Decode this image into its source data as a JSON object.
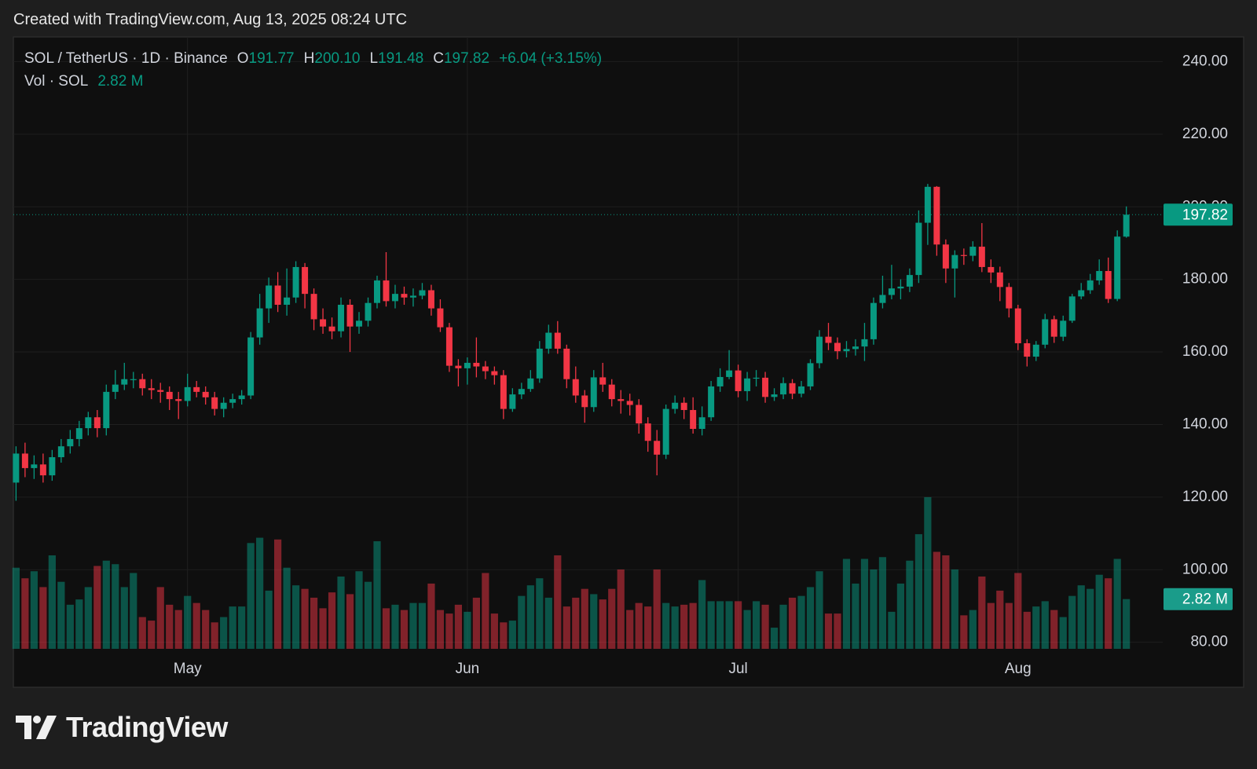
{
  "header": {
    "created": "Created with TradingView.com, Aug 13, 2025 08:24 UTC"
  },
  "chart_data": {
    "type": "candlestick",
    "symbol": "SOL / TetherUS · 1D · Binance",
    "categories": [
      null,
      null,
      null,
      null,
      null,
      null,
      null,
      null,
      null,
      null,
      null,
      null,
      null,
      null,
      null,
      null,
      null,
      null,
      null,
      "May",
      null,
      null,
      null,
      null,
      null,
      null,
      null,
      null,
      null,
      null,
      null,
      null,
      null,
      null,
      null,
      null,
      null,
      null,
      null,
      null,
      null,
      null,
      null,
      null,
      null,
      null,
      null,
      null,
      null,
      null,
      "Jun",
      null,
      null,
      null,
      null,
      null,
      null,
      null,
      null,
      null,
      null,
      null,
      null,
      null,
      null,
      null,
      null,
      null,
      null,
      null,
      null,
      null,
      null,
      null,
      null,
      null,
      null,
      null,
      null,
      null,
      "Jul",
      null,
      null,
      null,
      null,
      null,
      null,
      null,
      null,
      null,
      null,
      null,
      null,
      null,
      null,
      null,
      null,
      null,
      null,
      null,
      null,
      null,
      null,
      null,
      null,
      null,
      null,
      null,
      null,
      null,
      null,
      "Aug",
      null,
      null,
      null,
      null,
      null,
      null,
      null,
      null,
      null,
      null,
      null,
      null
    ],
    "open": [
      124,
      132,
      128,
      129,
      126,
      131,
      134,
      136,
      139,
      142,
      139,
      149,
      151,
      152.5,
      152.5,
      150,
      149.5,
      149,
      147,
      146.5,
      150.3,
      149,
      147.5,
      144.3,
      146,
      147,
      148,
      164,
      172,
      178.3,
      173,
      175,
      183.4,
      176,
      169,
      167,
      165.7,
      173,
      167,
      168.6,
      173.5,
      179.7,
      174,
      176,
      175,
      175.5,
      177,
      172,
      166.8,
      156.2,
      155.5,
      157,
      156,
      154.7,
      153.6,
      144.3,
      148.3,
      149.8,
      152.7,
      160.9,
      165.3,
      160.9,
      152.5,
      148,
      144.8,
      153,
      151,
      147,
      146.5,
      145.4,
      140.3,
      135.5,
      131.7,
      144.3,
      146,
      144,
      138.8,
      142,
      150.5,
      153.1,
      154.9,
      149.2,
      152.7,
      152.9,
      147.6,
      148.3,
      151.4,
      148.5,
      150.5,
      156.9,
      164.2,
      162.5,
      160.2,
      160.8,
      161.5,
      163.5,
      173.5,
      175.7,
      177.5,
      178,
      181.2,
      195.6,
      205.5,
      189.6,
      183,
      186.7,
      186.5,
      189,
      183.4,
      181.9,
      177.9,
      172,
      162.4,
      158.7,
      162,
      169,
      164.2,
      168.6,
      175.3,
      177,
      179.7,
      182.3,
      174.6,
      191.77
    ],
    "high": [
      134,
      135,
      131.5,
      132,
      133,
      136,
      138.5,
      141,
      143.5,
      144,
      151,
      155,
      157,
      154.5,
      154,
      152.5,
      151.5,
      150.5,
      149,
      154,
      152,
      150.5,
      149,
      147.5,
      148.5,
      149.5,
      165.5,
      176,
      180.5,
      182,
      183,
      185,
      184.5,
      177.5,
      172,
      169.5,
      175,
      174.5,
      171,
      175,
      181,
      187.5,
      178.5,
      178,
      177.5,
      179,
      178.5,
      174.5,
      168,
      158,
      158.5,
      164,
      157.5,
      156,
      155,
      150,
      151.5,
      155,
      163,
      167.5,
      168.5,
      162,
      156,
      149.5,
      155,
      157,
      152.5,
      149.5,
      148.5,
      147,
      142,
      138.5,
      145.5,
      148,
      147.5,
      147.5,
      145,
      152,
      155.5,
      160.5,
      156.5,
      154.5,
      155,
      154.5,
      150,
      153,
      152.5,
      152,
      158,
      166,
      168,
      164,
      163,
      163.5,
      168,
      175,
      181,
      184,
      180,
      183,
      199,
      206.3,
      205.7,
      191,
      188,
      188.5,
      190.5,
      195.5,
      185.5,
      183.5,
      179,
      173,
      163.5,
      163,
      170.5,
      170,
      170,
      176,
      179,
      181.5,
      185.5,
      186,
      193.5,
      200.1
    ],
    "low": [
      119,
      125.5,
      125,
      124,
      124.5,
      129.5,
      132,
      134,
      137,
      136.5,
      137,
      147,
      149.5,
      150,
      148,
      147,
      146,
      144,
      141.5,
      145,
      147.5,
      145.5,
      142.5,
      142,
      144.5,
      145.5,
      147,
      162,
      168,
      171,
      170,
      173.5,
      172,
      166,
      165,
      163.5,
      164,
      160,
      165,
      167,
      172,
      172.5,
      172,
      173,
      172.5,
      174.5,
      170,
      165.5,
      154.5,
      150.5,
      151,
      153,
      152.5,
      151,
      141.5,
      143.5,
      147,
      149,
      151.5,
      159.5,
      159.5,
      150,
      146,
      140.5,
      143.5,
      149,
      145,
      143,
      142.5,
      137.5,
      132.5,
      126,
      130.5,
      143,
      141.5,
      137.5,
      137,
      141,
      149,
      152.5,
      147.5,
      146.5,
      150.5,
      146,
      146.5,
      147,
      147,
      147.5,
      149.5,
      155.5,
      160.5,
      158,
      158.5,
      159,
      157.5,
      162,
      172,
      174.5,
      174.5,
      176.5,
      179,
      189.5,
      186.5,
      179,
      175,
      184,
      185,
      182,
      179,
      174,
      169.5,
      160.5,
      156,
      157.5,
      161,
      162.5,
      163,
      168,
      174.5,
      176,
      178.5,
      173.5,
      174,
      191.48
    ],
    "close": [
      132,
      128,
      129,
      126,
      131,
      134,
      136,
      139,
      142,
      139,
      149,
      151,
      152.5,
      152.5,
      150,
      149.5,
      149,
      147,
      146.5,
      150.3,
      149,
      147.5,
      144.3,
      146,
      147,
      148,
      164,
      172,
      178.3,
      173,
      175,
      183.4,
      176,
      169,
      167,
      165.7,
      173,
      167,
      168.6,
      173.5,
      179.7,
      174,
      176,
      175,
      175.5,
      177,
      172,
      166.8,
      156.2,
      155.5,
      157,
      156,
      154.7,
      153.6,
      144.3,
      148.3,
      149.8,
      152.7,
      160.9,
      165.3,
      160.9,
      152.5,
      148,
      144.8,
      153,
      151,
      147,
      146.5,
      145.4,
      140.3,
      135.5,
      131.7,
      144.3,
      146,
      144,
      138.8,
      142,
      150.5,
      153.1,
      154.9,
      149.2,
      152.7,
      152.9,
      147.6,
      148.3,
      151.4,
      148.5,
      150.5,
      156.9,
      164.2,
      162.5,
      160.2,
      160.8,
      161.5,
      163.5,
      173.5,
      175.7,
      177.5,
      178,
      181.2,
      195.6,
      205.5,
      189.6,
      183,
      186.7,
      186.5,
      189,
      183.4,
      181.9,
      177.9,
      172,
      162.4,
      158.7,
      162,
      169,
      164.2,
      168.6,
      175.3,
      177,
      179.7,
      182.3,
      174.6,
      191.78,
      197.82
    ],
    "legend": {
      "open": {
        "key": "O",
        "label": "191.77"
      },
      "high": {
        "key": "H",
        "label": "200.10"
      },
      "low": {
        "key": "L",
        "label": "191.48"
      },
      "close": {
        "key": "C",
        "label": "197.82"
      },
      "change": "+6.04 (+3.15%)"
    },
    "volume": {
      "name": "Vol · SOL",
      "last_label": "2.82 M",
      "ylim": [
        0,
        34.7
      ],
      "values": [
        4.6,
        4.0,
        4.4,
        3.5,
        5.3,
        3.8,
        2.5,
        2.8,
        3.5,
        4.7,
        5.0,
        4.8,
        3.5,
        4.3,
        1.8,
        1.6,
        3.5,
        2.5,
        2.2,
        3.0,
        2.6,
        2.2,
        1.5,
        1.8,
        2.4,
        2.4,
        6.0,
        6.3,
        3.3,
        6.2,
        4.6,
        3.6,
        3.4,
        2.9,
        2.3,
        3.2,
        4.1,
        3.1,
        4.4,
        3.8,
        6.1,
        2.3,
        2.5,
        2.2,
        2.6,
        2.6,
        3.7,
        2.2,
        2.0,
        2.5,
        2.1,
        2.9,
        4.3,
        2.0,
        1.5,
        1.6,
        3.0,
        3.6,
        4.0,
        2.9,
        5.3,
        2.4,
        2.9,
        3.4,
        3.1,
        2.8,
        3.4,
        4.5,
        2.2,
        2.6,
        2.4,
        4.5,
        2.6,
        2.4,
        2.5,
        2.6,
        3.9,
        2.7,
        2.7,
        2.7,
        2.7,
        2.2,
        2.7,
        2.5,
        1.2,
        2.5,
        2.9,
        3.0,
        3.5,
        4.4,
        2.0,
        2.0,
        5.1,
        3.7,
        5.1,
        4.5,
        5.2,
        2.1,
        3.7,
        5.0,
        6.5,
        8.6,
        5.5,
        5.3,
        4.5,
        1.9,
        2.2,
        4.1,
        2.6,
        3.3,
        2.6,
        4.3,
        2.1,
        2.4,
        2.7,
        2.2,
        1.8,
        3.0,
        3.6,
        3.4,
        4.2,
        4.0,
        5.1,
        2.82
      ]
    },
    "up_color": "#089981",
    "down_color": "#f23645",
    "ylim": [
      78.2,
      246.8
    ],
    "yticks": [
      {
        "value": 80,
        "label": "80.00"
      },
      {
        "value": 100,
        "label": "100.00"
      },
      {
        "value": 120,
        "label": "120.00"
      },
      {
        "value": 140,
        "label": "140.00"
      },
      {
        "value": 160,
        "label": "160.00"
      },
      {
        "value": 180,
        "label": "180.00"
      },
      {
        "value": 200,
        "label": "200.00"
      },
      {
        "value": 220,
        "label": "220.00"
      },
      {
        "value": 240,
        "label": "240.00"
      }
    ],
    "grid": true
  },
  "footer": {
    "brand": "TradingView"
  }
}
